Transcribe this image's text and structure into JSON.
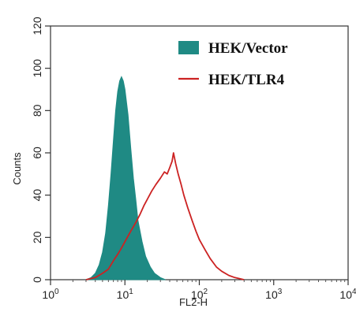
{
  "chart_data": {
    "type": "area",
    "xlabel": "FL2-H",
    "ylabel": "Counts",
    "x_scale": "log",
    "xlim": [
      1,
      10000
    ],
    "ylim": [
      0,
      120
    ],
    "x_ticks": [
      {
        "value": 1,
        "base": "10",
        "exp": "0"
      },
      {
        "value": 10,
        "base": "10",
        "exp": "1"
      },
      {
        "value": 100,
        "base": "10",
        "exp": "2"
      },
      {
        "value": 1000,
        "base": "10",
        "exp": "3"
      },
      {
        "value": 10000,
        "base": "10",
        "exp": "4"
      }
    ],
    "y_ticks": [
      "0",
      "20",
      "40",
      "60",
      "80",
      "100",
      "120"
    ],
    "legend_position": "top-right",
    "series": [
      {
        "name": "HEK/Vector",
        "style": "filled",
        "color": "#1f8a84",
        "points": [
          [
            3,
            0
          ],
          [
            3.5,
            1
          ],
          [
            4,
            3
          ],
          [
            4.5,
            7
          ],
          [
            5,
            13
          ],
          [
            5.5,
            22
          ],
          [
            6,
            35
          ],
          [
            6.5,
            50
          ],
          [
            7,
            66
          ],
          [
            7.5,
            80
          ],
          [
            8,
            89
          ],
          [
            8.5,
            94
          ],
          [
            9,
            96
          ],
          [
            9.5,
            94
          ],
          [
            10,
            90
          ],
          [
            11,
            78
          ],
          [
            12,
            62
          ],
          [
            13,
            48
          ],
          [
            14,
            38
          ],
          [
            15,
            28
          ],
          [
            17,
            18
          ],
          [
            19,
            11
          ],
          [
            22,
            6
          ],
          [
            25,
            3
          ],
          [
            30,
            1
          ],
          [
            35,
            0
          ]
        ]
      },
      {
        "name": "HEK/TLR4",
        "style": "line",
        "color": "#cc2222",
        "points": [
          [
            3,
            0
          ],
          [
            4,
            1
          ],
          [
            5,
            3
          ],
          [
            6,
            5
          ],
          [
            7,
            9
          ],
          [
            8,
            12
          ],
          [
            9,
            15
          ],
          [
            10,
            18
          ],
          [
            12,
            23
          ],
          [
            14,
            27
          ],
          [
            16,
            31
          ],
          [
            18,
            35
          ],
          [
            20,
            38
          ],
          [
            23,
            42
          ],
          [
            26,
            45
          ],
          [
            30,
            48
          ],
          [
            34,
            51
          ],
          [
            37,
            50
          ],
          [
            40,
            53
          ],
          [
            43,
            56
          ],
          [
            45,
            60
          ],
          [
            48,
            55
          ],
          [
            52,
            50
          ],
          [
            57,
            45
          ],
          [
            62,
            40
          ],
          [
            70,
            34
          ],
          [
            80,
            28
          ],
          [
            90,
            23
          ],
          [
            100,
            19
          ],
          [
            120,
            14
          ],
          [
            140,
            10
          ],
          [
            170,
            6
          ],
          [
            200,
            4
          ],
          [
            250,
            2
          ],
          [
            300,
            1
          ],
          [
            400,
            0
          ]
        ]
      }
    ]
  }
}
